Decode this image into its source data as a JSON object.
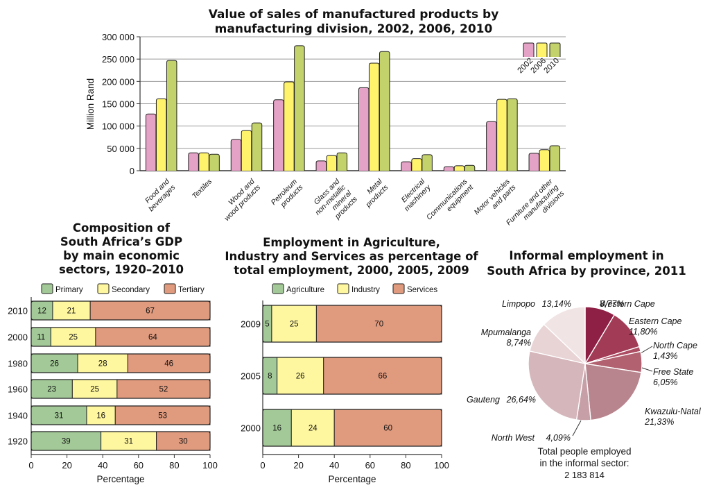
{
  "chart_data": [
    {
      "type": "bar",
      "title": "Value of sales of manufactured products by manufacturing division, 2002, 2006, 2010",
      "title_lines": [
        "Value of sales of manufactured products by",
        "manufacturing division, 2002, 2006, 2010"
      ],
      "ylabel": "Million Rand",
      "ylim": [
        0,
        300000
      ],
      "yticks": [
        0,
        50000,
        100000,
        150000,
        200000,
        250000,
        300000
      ],
      "ytick_labels": [
        "0",
        "50 000",
        "100 000",
        "150 000",
        "200 000",
        "250 000",
        "300 000"
      ],
      "grid": true,
      "legend_position": "top-right",
      "categories": [
        [
          "Food and",
          "beverages"
        ],
        [
          "Textiles"
        ],
        [
          "Wood and",
          "wood products"
        ],
        [
          "Petroleum",
          "products"
        ],
        [
          "Glass and",
          "non-metallic",
          "mineral",
          "products"
        ],
        [
          "Metal",
          "products"
        ],
        [
          "Electrical",
          "machinery"
        ],
        [
          "Communications",
          "equipment"
        ],
        [
          "Motor vehicles",
          "and parts"
        ],
        [
          "Furniture and other",
          "manufacturing",
          "divisions"
        ]
      ],
      "series": [
        {
          "name": "2002",
          "color": "#e5a2c7",
          "values": [
            127000,
            40000,
            70000,
            159000,
            22000,
            186000,
            20000,
            9000,
            110000,
            39000
          ]
        },
        {
          "name": "2006",
          "color": "#fff36b",
          "values": [
            161000,
            40000,
            90000,
            199000,
            34000,
            241000,
            27000,
            11000,
            160000,
            47000
          ]
        },
        {
          "name": "2010",
          "color": "#c3d26b",
          "values": [
            247000,
            37000,
            107000,
            280000,
            40000,
            267000,
            36000,
            12000,
            161000,
            56000
          ]
        }
      ]
    },
    {
      "type": "bar",
      "orientation": "horizontal-stacked",
      "title": "Composition of South Africa's GDP by main economic sectors, 1920–2010",
      "title_lines": [
        "Composition of",
        "South Africa’s GDP",
        "by main economic",
        "sectors, 1920–2010"
      ],
      "xlabel": "Percentage",
      "xlim": [
        0,
        100
      ],
      "xticks": [
        0,
        20,
        40,
        60,
        80,
        100
      ],
      "legend_position": "top",
      "categories": [
        "2010",
        "2000",
        "1980",
        "1960",
        "1940",
        "1920"
      ],
      "series": [
        {
          "name": "Primary",
          "color": "#a2c997",
          "values": [
            12,
            11,
            26,
            23,
            31,
            39
          ]
        },
        {
          "name": "Secondary",
          "color": "#fff7a0",
          "values": [
            21,
            25,
            28,
            25,
            16,
            31
          ]
        },
        {
          "name": "Tertiary",
          "color": "#e09a7e",
          "values": [
            67,
            64,
            46,
            52,
            53,
            30
          ]
        }
      ]
    },
    {
      "type": "bar",
      "orientation": "horizontal-stacked",
      "title": "Employment in Agriculture, Industry and Services as percentage of total employment, 2000, 2005, 2009",
      "title_lines": [
        "Employment in Agriculture,",
        "Industry and Services as percentage of",
        "total employment, 2000, 2005, 2009"
      ],
      "xlabel": "Percentage",
      "xlim": [
        0,
        100
      ],
      "xticks": [
        0,
        20,
        40,
        60,
        80,
        100
      ],
      "legend_position": "top",
      "categories": [
        "2009",
        "2005",
        "2000"
      ],
      "series": [
        {
          "name": "Agriculture",
          "color": "#a2c997",
          "values": [
            5,
            8,
            16
          ]
        },
        {
          "name": "Industry",
          "color": "#fff7a0",
          "values": [
            25,
            26,
            24
          ]
        },
        {
          "name": "Services",
          "color": "#e09a7e",
          "values": [
            70,
            66,
            60
          ]
        }
      ]
    },
    {
      "type": "pie",
      "title": "Informal employment in South Africa by province, 2011",
      "title_lines": [
        "Informal employment in",
        "South Africa by province, 2011"
      ],
      "slices": [
        {
          "name": "Western Cape",
          "value": 8.77,
          "label": "8,77%",
          "color": "#8e1f45"
        },
        {
          "name": "Eastern Cape",
          "value": 11.8,
          "label": "11,80%",
          "color": "#a23c56"
        },
        {
          "name": "North Cape",
          "value": 1.43,
          "label": "1,43%",
          "color": "#ad4d63"
        },
        {
          "name": "Free State",
          "value": 6.05,
          "label": "6,05%",
          "color": "#b1616f"
        },
        {
          "name": "Kwazulu-Natal",
          "value": 21.33,
          "label": "21,33%",
          "color": "#b8848d"
        },
        {
          "name": "North West",
          "value": 4.09,
          "label": "4,09%",
          "color": "#c7a0a7"
        },
        {
          "name": "Gauteng",
          "value": 26.64,
          "label": "26,64%",
          "color": "#d5b6bb"
        },
        {
          "name": "Mpumalanga",
          "value": 8.74,
          "label": "8,74%",
          "color": "#e8d3d5"
        },
        {
          "name": "Limpopo",
          "value": 13.14,
          "label": "13,14%",
          "color": "#f1e4e5"
        }
      ],
      "note_lines": [
        "Total people employed",
        "in the informal sector:",
        "2 183 814"
      ]
    }
  ]
}
